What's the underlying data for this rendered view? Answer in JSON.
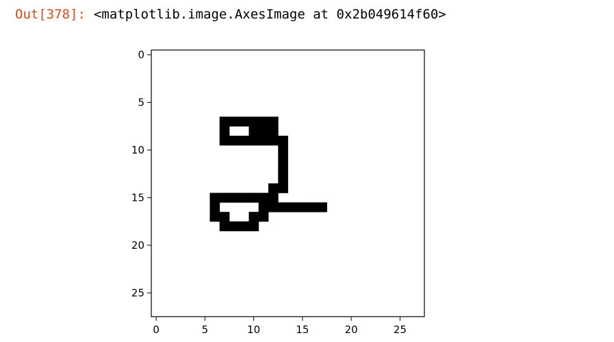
{
  "cell": {
    "prompt": "Out[378]:",
    "text": "<matplotlib.image.AxesImage at 0x2b049614f60>"
  },
  "chart_data": {
    "type": "heatmap",
    "title": "",
    "xlabel": "",
    "ylabel": "",
    "xlim": [
      -0.5,
      27.5
    ],
    "ylim": [
      27.5,
      -0.5
    ],
    "xticks": [
      0,
      5,
      10,
      15,
      20,
      25
    ],
    "yticks": [
      0,
      5,
      10,
      15,
      20,
      25
    ],
    "grid": false,
    "colormap": "gray_r",
    "pixel_color": "#000000",
    "background_color": "#ffffff",
    "shape": [
      28,
      28
    ],
    "ink_pixels": [
      [
        7,
        7
      ],
      [
        7,
        8
      ],
      [
        7,
        9
      ],
      [
        7,
        10
      ],
      [
        7,
        11
      ],
      [
        7,
        12
      ],
      [
        8,
        7
      ],
      [
        8,
        10
      ],
      [
        8,
        11
      ],
      [
        8,
        12
      ],
      [
        9,
        7
      ],
      [
        9,
        8
      ],
      [
        9,
        9
      ],
      [
        9,
        10
      ],
      [
        9,
        11
      ],
      [
        9,
        12
      ],
      [
        9,
        13
      ],
      [
        10,
        13
      ],
      [
        11,
        13
      ],
      [
        12,
        13
      ],
      [
        13,
        13
      ],
      [
        14,
        12
      ],
      [
        14,
        13
      ],
      [
        15,
        6
      ],
      [
        15,
        7
      ],
      [
        15,
        8
      ],
      [
        15,
        9
      ],
      [
        15,
        10
      ],
      [
        15,
        11
      ],
      [
        15,
        12
      ],
      [
        16,
        6
      ],
      [
        16,
        11
      ],
      [
        16,
        12
      ],
      [
        16,
        13
      ],
      [
        16,
        14
      ],
      [
        16,
        15
      ],
      [
        16,
        16
      ],
      [
        16,
        17
      ],
      [
        17,
        6
      ],
      [
        17,
        7
      ],
      [
        17,
        10
      ],
      [
        17,
        11
      ],
      [
        18,
        7
      ],
      [
        18,
        8
      ],
      [
        18,
        9
      ],
      [
        18,
        10
      ]
    ]
  }
}
